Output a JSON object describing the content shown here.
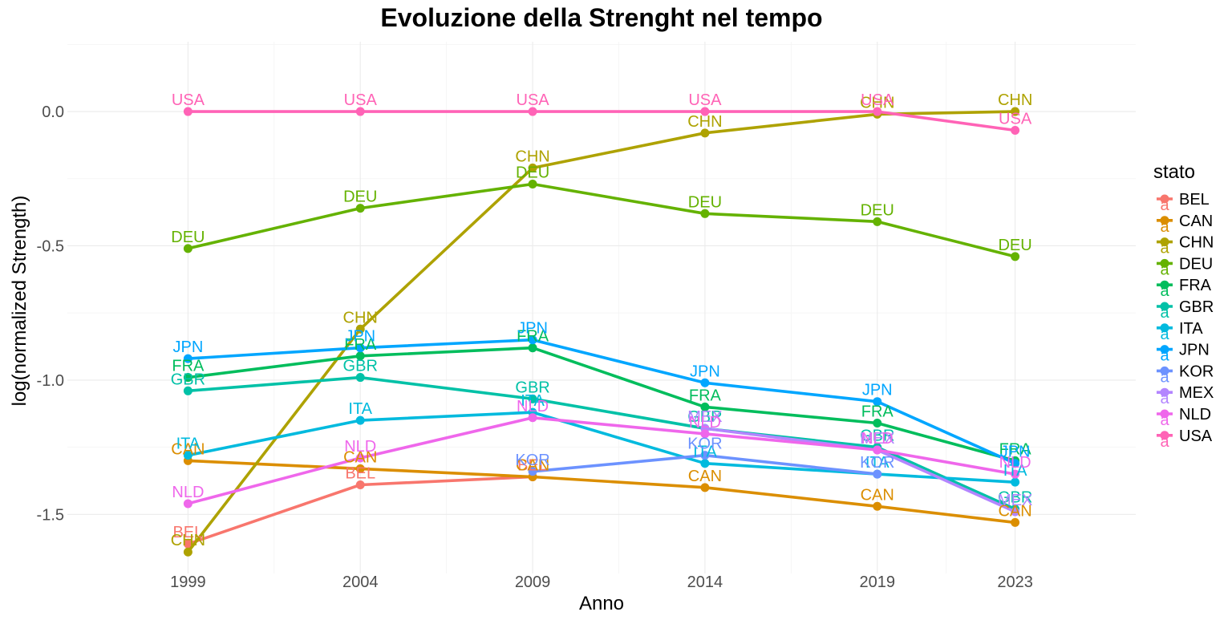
{
  "chart_data": {
    "type": "line",
    "title": "Evoluzione della Strenght nel tempo",
    "xlabel": "Anno",
    "ylabel": "log(normalized Strength)",
    "x": [
      1999,
      2004,
      2009,
      2014,
      2019,
      2023
    ],
    "ylim": [
      -1.72,
      0.26
    ],
    "yticks": [
      0.0,
      -0.5,
      -1.0,
      -1.5
    ],
    "ytick_labels": [
      "0.0",
      "-0.5",
      "-1.0",
      "-1.5"
    ],
    "grid": true,
    "legend": {
      "title": "stato",
      "position": "right",
      "glyph": "a"
    },
    "series": [
      {
        "name": "BEL",
        "color": "#F8766D",
        "values": [
          -1.61,
          -1.39,
          -1.36,
          null,
          null,
          null
        ]
      },
      {
        "name": "CAN",
        "color": "#DB8E00",
        "values": [
          -1.3,
          -1.33,
          -1.36,
          -1.4,
          -1.47,
          -1.53
        ]
      },
      {
        "name": "CHN",
        "color": "#AEA200",
        "values": [
          -1.64,
          -0.81,
          -0.21,
          -0.08,
          -0.01,
          0.0
        ]
      },
      {
        "name": "DEU",
        "color": "#64B200",
        "values": [
          -0.51,
          -0.36,
          -0.27,
          -0.38,
          -0.41,
          -0.54
        ]
      },
      {
        "name": "FRA",
        "color": "#00BD5C",
        "values": [
          -0.99,
          -0.91,
          -0.88,
          -1.1,
          -1.16,
          -1.3
        ]
      },
      {
        "name": "GBR",
        "color": "#00C1A7",
        "values": [
          -1.04,
          -0.99,
          -1.07,
          -1.18,
          -1.25,
          -1.48
        ]
      },
      {
        "name": "ITA",
        "color": "#00BADE",
        "values": [
          -1.28,
          -1.15,
          -1.12,
          -1.31,
          -1.35,
          -1.38
        ]
      },
      {
        "name": "JPN",
        "color": "#00A6FF",
        "values": [
          -0.92,
          -0.88,
          -0.85,
          -1.01,
          -1.08,
          -1.31
        ]
      },
      {
        "name": "KOR",
        "color": "#6C92FF",
        "values": [
          null,
          null,
          -1.34,
          -1.28,
          -1.35,
          null
        ]
      },
      {
        "name": "MEX",
        "color": "#B385FF",
        "values": [
          null,
          null,
          null,
          -1.18,
          -1.26,
          -1.49
        ]
      },
      {
        "name": "NLD",
        "color": "#EF67EB",
        "values": [
          -1.46,
          -1.29,
          -1.14,
          -1.2,
          -1.26,
          -1.35
        ]
      },
      {
        "name": "USA",
        "color": "#FF63B6",
        "values": [
          0.0,
          0.0,
          0.0,
          0.0,
          0.0,
          -0.07
        ]
      }
    ]
  }
}
